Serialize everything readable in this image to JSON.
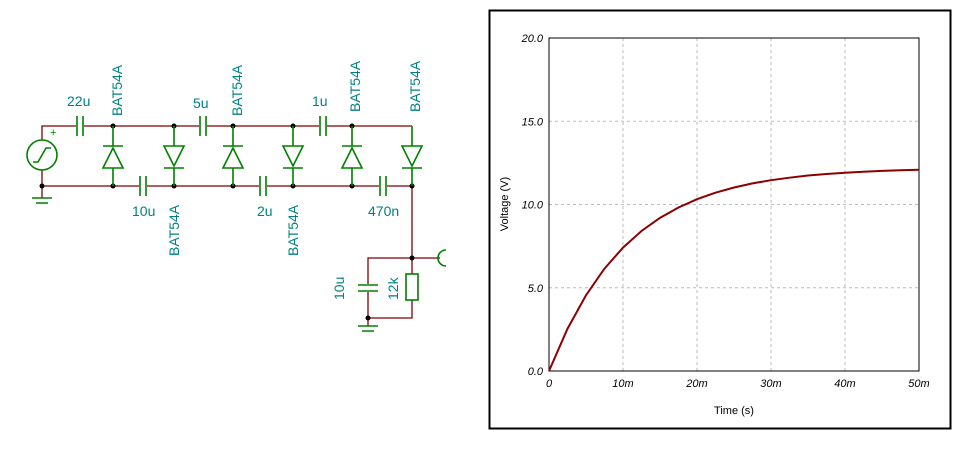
{
  "circuit": {
    "capacitors": [
      "22u",
      "5u",
      "1u",
      "10u",
      "2u",
      "470n",
      "10u"
    ],
    "diodes": [
      "BAT54A",
      "BAT54A",
      "BAT54A",
      "BAT54A",
      "BAT54A",
      "BAT54A"
    ],
    "resistor": "12k"
  },
  "chart_data": {
    "type": "line",
    "xlabel": "Time (s)",
    "ylabel": "Voltage (V)",
    "x": [
      0,
      0.0025,
      0.005,
      0.0075,
      0.01,
      0.0125,
      0.015,
      0.0175,
      0.02,
      0.0225,
      0.025,
      0.0275,
      0.03,
      0.0325,
      0.035,
      0.0375,
      0.04,
      0.0425,
      0.045,
      0.0475,
      0.05
    ],
    "series": [
      {
        "color": "#8b0000",
        "values": [
          0,
          2.54,
          4.55,
          6.15,
          7.41,
          8.41,
          9.2,
          9.82,
          10.32,
          10.71,
          11.02,
          11.27,
          11.46,
          11.61,
          11.74,
          11.83,
          11.91,
          11.97,
          12.02,
          12.06,
          12.09
        ]
      }
    ],
    "xlim": [
      0,
      0.05
    ],
    "ylim": [
      0,
      20
    ],
    "xticks": [
      0,
      {
        "value": 0.01,
        "label": "10m"
      },
      {
        "value": 0.02,
        "label": "20m"
      },
      {
        "value": 0.03,
        "label": "30m"
      },
      {
        "value": 0.04,
        "label": "40m"
      },
      {
        "value": 0.05,
        "label": "50m"
      }
    ],
    "yticks": [
      {
        "value": 0,
        "label": "0.0"
      },
      {
        "value": 5,
        "label": "5.0"
      },
      {
        "value": 10,
        "label": "10.0"
      },
      {
        "value": 15,
        "label": "15.0"
      },
      {
        "value": 20,
        "label": "20.0"
      }
    ],
    "grid": true
  }
}
